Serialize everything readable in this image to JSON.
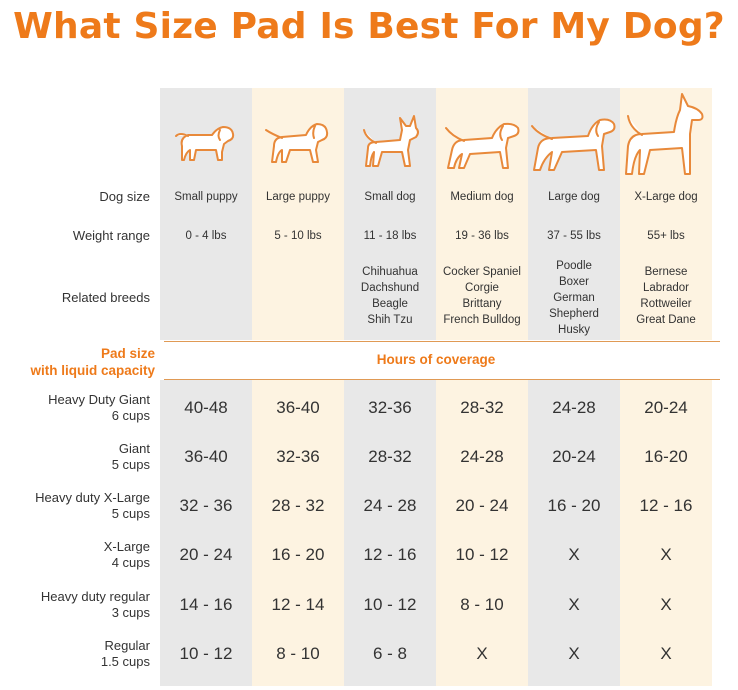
{
  "title": "What Size Pad Is Best For My Dog?",
  "row_labels": {
    "dog_size": "Dog size",
    "weight_range": "Weight range",
    "related_breeds": "Related breeds",
    "pad_size_line1": "Pad size",
    "pad_size_line2": "with liquid capacity",
    "hours_of_coverage": "Hours of coverage"
  },
  "columns": [
    {
      "size": "Small puppy",
      "weight": "0 - 4 lbs",
      "breeds": []
    },
    {
      "size": "Large puppy",
      "weight": "5 - 10 lbs",
      "breeds": []
    },
    {
      "size": "Small dog",
      "weight": "11 - 18 lbs",
      "breeds": [
        "Chihuahua",
        "Dachshund",
        "Beagle",
        "Shih Tzu"
      ]
    },
    {
      "size": "Medium dog",
      "weight": "19 - 36 lbs",
      "breeds": [
        "Cocker Spaniel",
        "Corgie",
        "Brittany",
        "French Bulldog"
      ]
    },
    {
      "size": "Large dog",
      "weight": "37 - 55 lbs",
      "breeds": [
        "Poodle",
        "Boxer",
        "German",
        "Shepherd",
        "Husky"
      ]
    },
    {
      "size": "X-Large dog",
      "weight": "55+ lbs",
      "breeds": [
        "Bernese",
        "Labrador",
        "Rottweiler",
        "Great Dane"
      ]
    }
  ],
  "pads": [
    {
      "name": "Heavy Duty Giant",
      "capacity": "6 cups",
      "hours": [
        "40-48",
        "36-40",
        "32-36",
        "28-32",
        "24-28",
        "20-24"
      ]
    },
    {
      "name": "Giant",
      "capacity": "5 cups",
      "hours": [
        "36-40",
        "32-36",
        "28-32",
        "24-28",
        "20-24",
        "16-20"
      ]
    },
    {
      "name": "Heavy duty X-Large",
      "capacity": "5 cups",
      "hours": [
        "32 - 36",
        "28 - 32",
        "24 - 28",
        "20 - 24",
        "16 - 20",
        "12 - 16"
      ]
    },
    {
      "name": "X-Large",
      "capacity": "4 cups",
      "hours": [
        "20 - 24",
        "16 - 20",
        "12 - 16",
        "10 - 12",
        "X",
        "X"
      ]
    },
    {
      "name": "Heavy duty regular",
      "capacity": "3 cups",
      "hours": [
        "14 - 16",
        "12 - 14",
        "10 - 12",
        "8 - 10",
        "X",
        "X"
      ]
    },
    {
      "name": "Regular",
      "capacity": "1.5 cups",
      "hours": [
        "10 - 12",
        "8 - 10",
        "6 - 8",
        "X",
        "X",
        "X"
      ]
    }
  ],
  "colors": {
    "accent": "#ee7a1a",
    "gray_column": "#e8e8e8",
    "cream_column": "#fdf3e1",
    "icon_stroke": "#e8893a"
  },
  "icons": [
    "dog-small-puppy-icon",
    "dog-large-puppy-icon",
    "dog-small-dog-icon",
    "dog-medium-dog-icon",
    "dog-large-dog-icon",
    "dog-xlarge-dog-icon"
  ]
}
